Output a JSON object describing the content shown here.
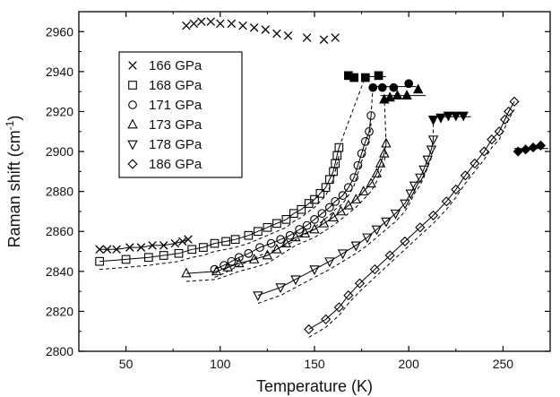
{
  "chart_data": {
    "type": "scatter",
    "title": "",
    "xlabel": "Temperature (K)",
    "ylabel_main": "Raman shift (cm",
    "ylabel_sup": "-1",
    "ylabel_close": ")",
    "xlim": [
      25,
      275
    ],
    "ylim": [
      2800,
      2970
    ],
    "xticks": [
      50,
      100,
      150,
      200,
      250
    ],
    "yticks": [
      2800,
      2820,
      2840,
      2860,
      2880,
      2900,
      2920,
      2940,
      2960
    ],
    "grid": false,
    "legend_position": "top-left",
    "series": [
      {
        "name": "166 GPa",
        "marker": "x",
        "values": [
          [
            36,
            2851
          ],
          [
            40,
            2851
          ],
          [
            45,
            2851
          ],
          [
            52,
            2852
          ],
          [
            58,
            2852
          ],
          [
            64,
            2853
          ],
          [
            70,
            2853
          ],
          [
            76,
            2854
          ],
          [
            80,
            2855
          ],
          [
            83,
            2856
          ],
          [
            82,
            2963
          ],
          [
            86,
            2964
          ],
          [
            90,
            2965
          ],
          [
            95,
            2965
          ],
          [
            100,
            2964
          ],
          [
            106,
            2964
          ],
          [
            112,
            2963
          ],
          [
            118,
            2962
          ],
          [
            124,
            2961
          ],
          [
            130,
            2959
          ],
          [
            136,
            2958
          ],
          [
            146,
            2957
          ],
          [
            155,
            2956
          ],
          [
            161,
            2957
          ]
        ],
        "filled_values": [
          [
            168,
            2938
          ],
          [
            171,
            2937
          ]
        ]
      },
      {
        "name": "168 GPa",
        "marker": "square",
        "values": [
          [
            36,
            2845
          ],
          [
            50,
            2846
          ],
          [
            62,
            2847
          ],
          [
            70,
            2848
          ],
          [
            78,
            2849
          ],
          [
            85,
            2851
          ],
          [
            91,
            2852
          ],
          [
            97,
            2854
          ],
          [
            103,
            2855
          ],
          [
            108,
            2856
          ],
          [
            115,
            2858
          ],
          [
            120,
            2860
          ],
          [
            125,
            2862
          ],
          [
            130,
            2864
          ],
          [
            135,
            2866
          ],
          [
            139,
            2869
          ],
          [
            143,
            2871
          ],
          [
            147,
            2874
          ],
          [
            150,
            2876
          ],
          [
            153,
            2879
          ],
          [
            156,
            2882
          ],
          [
            158,
            2886
          ],
          [
            160,
            2890
          ],
          [
            161,
            2894
          ],
          [
            162,
            2898
          ],
          [
            163,
            2902
          ]
        ],
        "filled_values": [
          [
            177,
            2937
          ],
          [
            184,
            2938
          ]
        ]
      },
      {
        "name": "171 GPa",
        "marker": "circle",
        "values": [
          [
            97,
            2841
          ],
          [
            102,
            2843
          ],
          [
            106,
            2845
          ],
          [
            110,
            2847
          ],
          [
            115,
            2849
          ],
          [
            121,
            2852
          ],
          [
            127,
            2854
          ],
          [
            132,
            2856
          ],
          [
            137,
            2858
          ],
          [
            142,
            2861
          ],
          [
            146,
            2863
          ],
          [
            150,
            2866
          ],
          [
            154,
            2869
          ],
          [
            158,
            2872
          ],
          [
            161,
            2875
          ],
          [
            165,
            2878
          ],
          [
            168,
            2882
          ],
          [
            171,
            2887
          ],
          [
            173,
            2893
          ],
          [
            175,
            2899
          ],
          [
            177,
            2905
          ],
          [
            179,
            2910
          ],
          [
            180,
            2918
          ]
        ],
        "filled_values": [
          [
            181,
            2932
          ],
          [
            186,
            2932
          ],
          [
            192,
            2932
          ],
          [
            200,
            2934
          ]
        ]
      },
      {
        "name": "173 GPa",
        "marker": "triangle-up",
        "values": [
          [
            82,
            2839
          ],
          [
            98,
            2840
          ],
          [
            104,
            2842
          ],
          [
            110,
            2844
          ],
          [
            118,
            2846
          ],
          [
            125,
            2848
          ],
          [
            130,
            2851
          ],
          [
            135,
            2854
          ],
          [
            140,
            2857
          ],
          [
            145,
            2859
          ],
          [
            150,
            2861
          ],
          [
            155,
            2864
          ],
          [
            160,
            2867
          ],
          [
            164,
            2870
          ],
          [
            168,
            2873
          ],
          [
            172,
            2876
          ],
          [
            176,
            2880
          ],
          [
            180,
            2884
          ],
          [
            183,
            2889
          ],
          [
            185,
            2894
          ],
          [
            187,
            2899
          ],
          [
            188,
            2904
          ]
        ],
        "filled_values": [
          [
            187,
            2926
          ],
          [
            190,
            2927
          ],
          [
            194,
            2928
          ],
          [
            199,
            2928
          ],
          [
            205,
            2931
          ]
        ]
      },
      {
        "name": "178 GPa",
        "marker": "triangle-down",
        "values": [
          [
            120,
            2828
          ],
          [
            132,
            2832
          ],
          [
            140,
            2836
          ],
          [
            150,
            2841
          ],
          [
            158,
            2845
          ],
          [
            165,
            2849
          ],
          [
            172,
            2853
          ],
          [
            178,
            2857
          ],
          [
            183,
            2861
          ],
          [
            188,
            2865
          ],
          [
            193,
            2869
          ],
          [
            198,
            2874
          ],
          [
            201,
            2879
          ],
          [
            203,
            2883
          ],
          [
            206,
            2887
          ],
          [
            208,
            2891
          ],
          [
            210,
            2896
          ],
          [
            212,
            2901
          ],
          [
            213,
            2906
          ]
        ],
        "filled_values": [
          [
            213,
            2916
          ],
          [
            217,
            2917
          ],
          [
            221,
            2918
          ],
          [
            225,
            2918
          ],
          [
            229,
            2918
          ]
        ]
      },
      {
        "name": "186 GPa",
        "marker": "diamond",
        "values": [
          [
            147,
            2811
          ],
          [
            156,
            2816
          ],
          [
            163,
            2822
          ],
          [
            168,
            2828
          ],
          [
            174,
            2834
          ],
          [
            182,
            2841
          ],
          [
            190,
            2848
          ],
          [
            198,
            2855
          ],
          [
            206,
            2862
          ],
          [
            213,
            2868
          ],
          [
            220,
            2875
          ],
          [
            225,
            2881
          ],
          [
            230,
            2888
          ],
          [
            235,
            2894
          ],
          [
            240,
            2900
          ],
          [
            244,
            2906
          ],
          [
            248,
            2910
          ],
          [
            251,
            2916
          ],
          [
            253,
            2920
          ],
          [
            256,
            2925
          ]
        ],
        "filled_values": [
          [
            258,
            2900
          ],
          [
            262,
            2901
          ],
          [
            266,
            2902
          ],
          [
            270,
            2903
          ]
        ]
      }
    ]
  }
}
